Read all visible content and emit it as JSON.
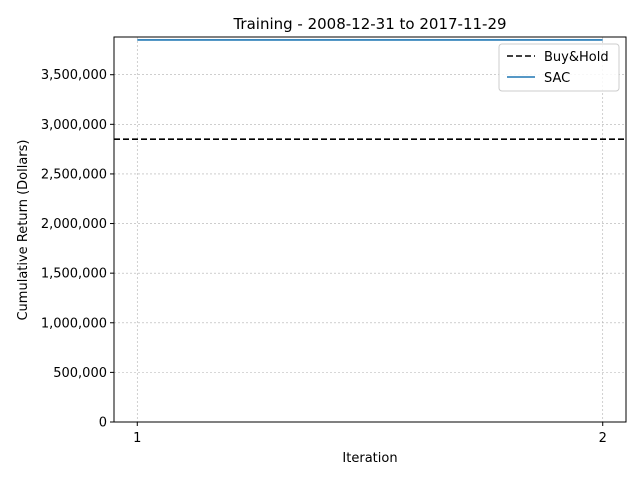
{
  "chart_data": {
    "type": "line",
    "title": "Training - 2008-12-31 to 2017-11-29",
    "xlabel": "Iteration",
    "ylabel": "Cumulative Return (Dollars)",
    "x_ticks": [
      1,
      2
    ],
    "x_tick_labels": [
      "1",
      "2"
    ],
    "xlim": [
      0.95,
      2.05
    ],
    "y_ticks": [
      0,
      500000,
      1000000,
      1500000,
      2000000,
      2500000,
      3000000,
      3500000
    ],
    "y_tick_labels": [
      "0",
      "500,000",
      "1,000,000",
      "1,500,000",
      "2,000,000",
      "2,500,000",
      "3,000,000",
      "3,500,000"
    ],
    "ylim": [
      0,
      3880000
    ],
    "grid": true,
    "legend_position": "top-right",
    "series": [
      {
        "name": "Buy&Hold",
        "style": "dashed",
        "color": "#000000",
        "kind": "hline",
        "value": 2850000
      },
      {
        "name": "SAC",
        "style": "solid",
        "color": "#1f77b4",
        "kind": "line",
        "x": [
          1,
          2
        ],
        "values": [
          3850000,
          3850000
        ]
      }
    ]
  }
}
